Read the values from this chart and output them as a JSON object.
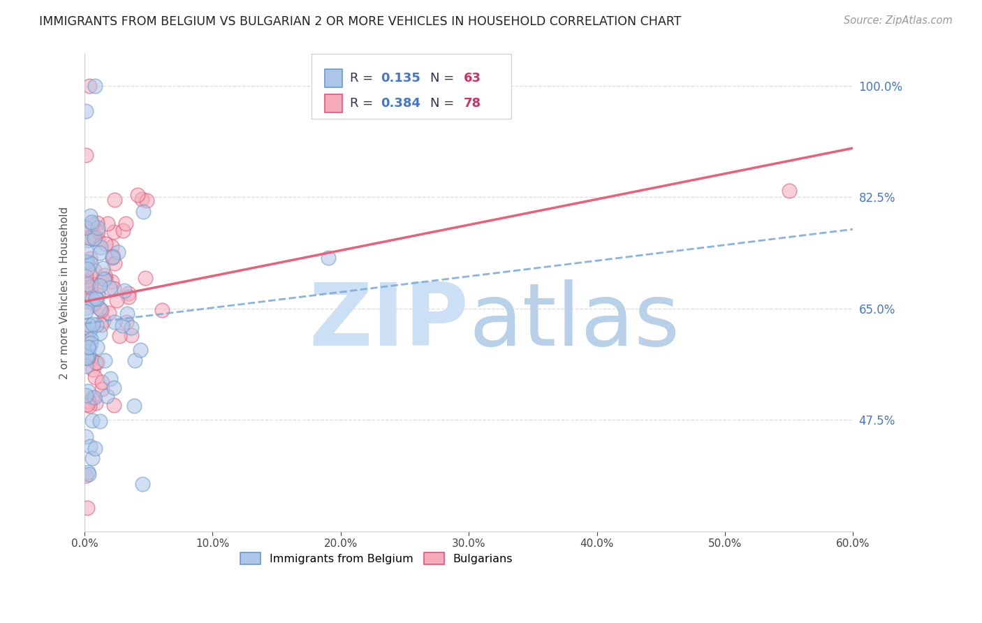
{
  "title": "IMMIGRANTS FROM BELGIUM VS BULGARIAN 2 OR MORE VEHICLES IN HOUSEHOLD CORRELATION CHART",
  "source": "Source: ZipAtlas.com",
  "ylabel": "2 or more Vehicles in Household",
  "xlabel_ticks": [
    "0.0%",
    "10.0%",
    "20.0%",
    "30.0%",
    "40.0%",
    "50.0%",
    "60.0%"
  ],
  "ytick_labels": [
    "100.0%",
    "82.5%",
    "65.0%",
    "47.5%"
  ],
  "ytick_values": [
    1.0,
    0.825,
    0.65,
    0.475
  ],
  "xlim": [
    0.0,
    0.6
  ],
  "ylim": [
    0.3,
    1.05
  ],
  "r_belgium": 0.135,
  "n_belgium": 63,
  "r_bulgarian": 0.384,
  "n_bulgarian": 78,
  "color_belgium_face": "#aec6e8",
  "color_bulgarian_face": "#f4aabb",
  "color_belgium_edge": "#6699cc",
  "color_bulgarian_edge": "#e05575",
  "color_belgium_line": "#7aacdd",
  "color_bulgarian_line": "#e8607a",
  "watermark_zip_color": "#cce0f5",
  "watermark_atlas_color": "#b8d0e8",
  "legend_r_color": "#4477cc",
  "legend_n_color": "#cc3366",
  "legend_text_color": "#333355",
  "title_color": "#222222",
  "source_color": "#999999",
  "ytick_color": "#4477cc",
  "xtick_color": "#444444",
  "grid_color": "#dddddd",
  "spine_color": "#cccccc"
}
